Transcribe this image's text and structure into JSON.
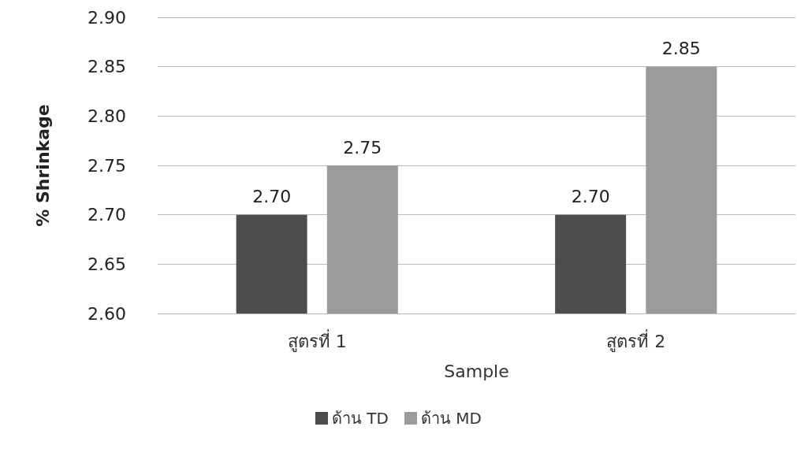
{
  "chart_data": {
    "type": "bar",
    "xlabel": "Sample",
    "ylabel": "% Shrinkage",
    "categories": [
      "สูตรที่ 1",
      "สูตรที่ 2"
    ],
    "series": [
      {
        "name": "ด้าน TD",
        "color": "#4b4e4d",
        "values": [
          2.7,
          2.7
        ],
        "value_labels": [
          "2.70",
          "2.70"
        ]
      },
      {
        "name": "ด้าน MD",
        "color": "#9b9b9b",
        "values": [
          2.75,
          2.85
        ],
        "value_labels": [
          "2.75",
          "2.85"
        ]
      }
    ],
    "ylim": [
      2.6,
      2.9
    ],
    "yticks": [
      {
        "value": 2.6,
        "label": "2.60"
      },
      {
        "value": 2.65,
        "label": "2.65"
      },
      {
        "value": 2.7,
        "label": "2.70"
      },
      {
        "value": 2.75,
        "label": "2.75"
      },
      {
        "value": 2.8,
        "label": "2.80"
      },
      {
        "value": 2.85,
        "label": "2.85"
      },
      {
        "value": 2.9,
        "label": "2.90"
      }
    ],
    "grid": "y",
    "legend": "bottom"
  }
}
